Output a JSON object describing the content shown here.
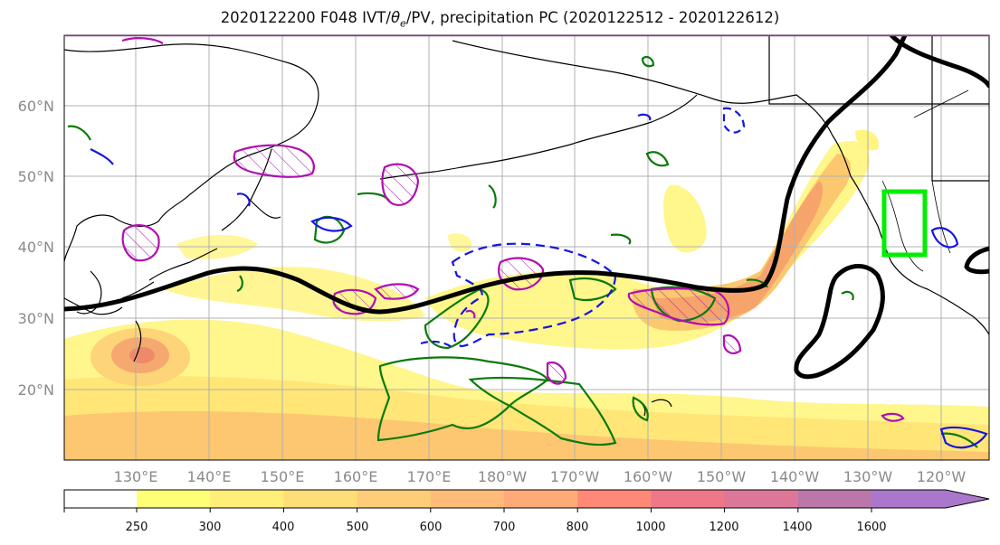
{
  "title": {
    "prefix": "2020122200 F048 IVT/",
    "theta": "θ",
    "theta_sub": "e",
    "suffix": "/PV, precipitation PC (2020122512 - 2020122612)"
  },
  "axes": {
    "lat_labels": [
      "60°N",
      "50°N",
      "40°N",
      "30°N",
      "20°N"
    ],
    "lon_labels": [
      "130°E",
      "140°E",
      "150°E",
      "160°E",
      "170°E",
      "180°W",
      "170°W",
      "160°W",
      "150°W",
      "140°W",
      "130°W",
      "120°W"
    ]
  },
  "colorbar": {
    "levels": [
      "250",
      "300",
      "400",
      "500",
      "600",
      "700",
      "800",
      "1000",
      "1200",
      "1400",
      "1600"
    ],
    "colors": [
      "#ffff77",
      "#ffee77",
      "#ffdd77",
      "#ffcc77",
      "#ffbb77",
      "#ffaa77",
      "#ff8877",
      "#ee7788",
      "#dd7799",
      "#bb77aa",
      "#aa77cc"
    ]
  },
  "legend_colors": {
    "ivt_fill_low": "#fff580",
    "ivt_fill_high": "#f59a6a",
    "theta_e_contour": "#000000",
    "pv_positive": "#0a7a0a",
    "pv_negative": "#1515e0",
    "precip": "#b010b0",
    "target_box": "#00ee00"
  }
}
